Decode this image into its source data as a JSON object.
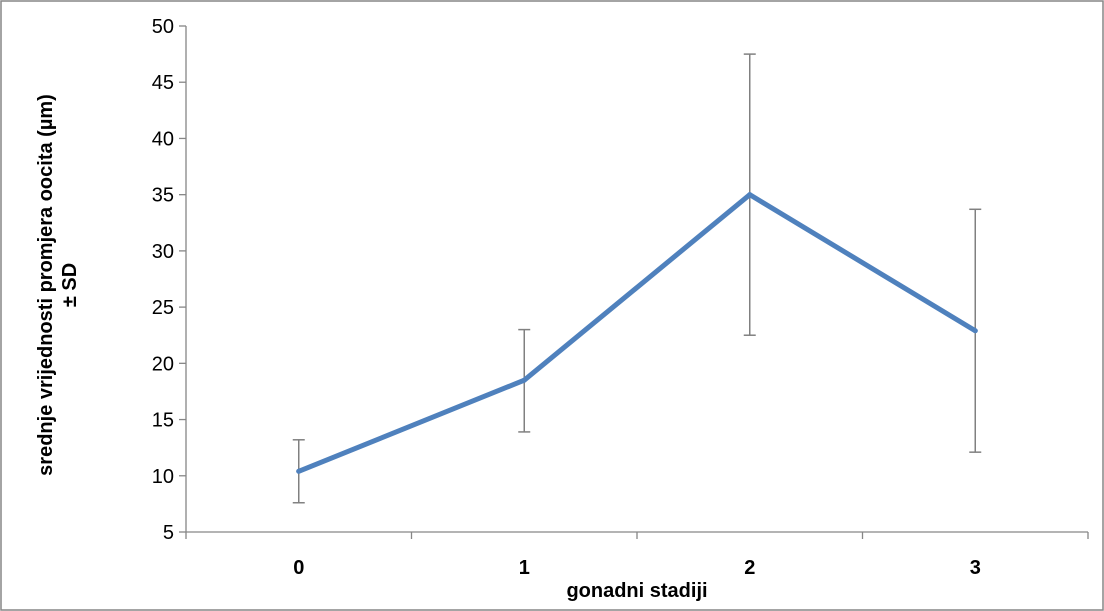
{
  "chart_data": {
    "type": "line",
    "categories": [
      "0",
      "1",
      "2",
      "3"
    ],
    "series": [
      {
        "values": [
          10.4,
          18.5,
          35.0,
          22.9
        ],
        "error_bars": {
          "plus": [
            2.8,
            4.5,
            12.5,
            10.8
          ],
          "minus": [
            2.8,
            4.6,
            12.5,
            10.8
          ]
        }
      }
    ],
    "xlabel": "gonadni stadiji",
    "ylabel_lines": [
      "srednje vrijednosti  promjera oocita (µm)",
      "± SD"
    ],
    "ylim": [
      5,
      50
    ],
    "yticks": [
      5,
      10,
      15,
      20,
      25,
      30,
      35,
      40,
      45,
      50
    ],
    "ytick_labels": [
      "5",
      "10",
      "15",
      "20",
      "25",
      "30",
      "35",
      "40",
      "45",
      "50"
    ],
    "grid": false,
    "legend": "none",
    "colors": {
      "line": "#4f81bd",
      "error_bar": "#808080",
      "axis": "#868686",
      "frame": "#868686"
    }
  }
}
